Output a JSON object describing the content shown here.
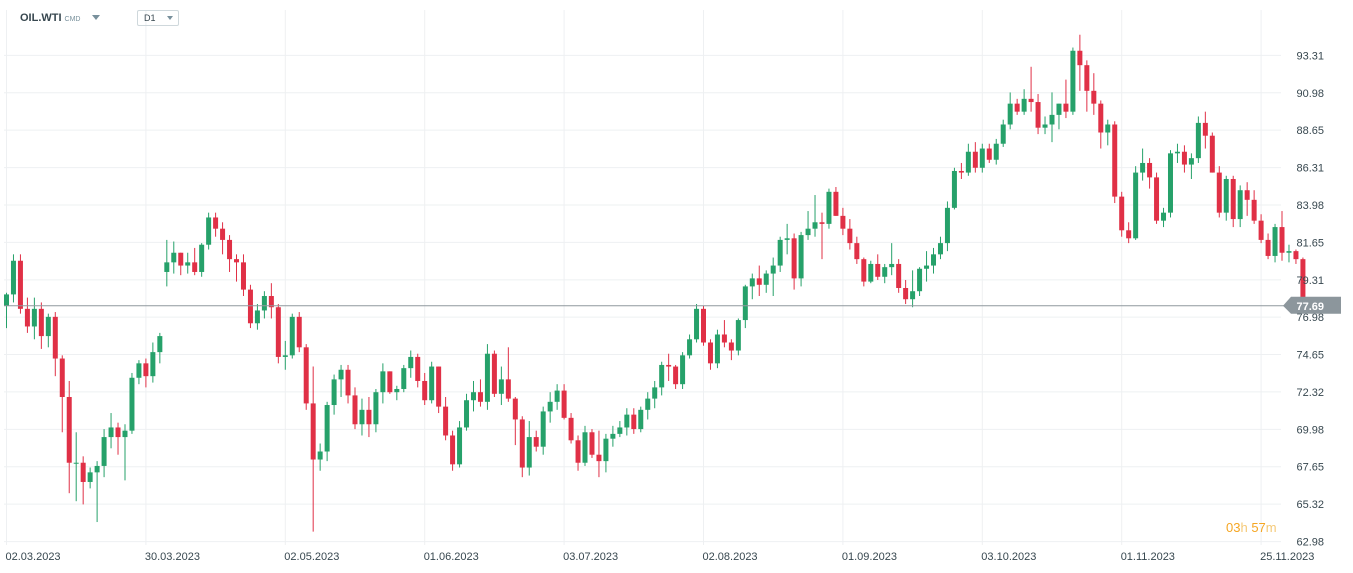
{
  "header": {
    "symbol": "OIL.WTI",
    "symbol_suffix": "CMD",
    "timeframe": "D1"
  },
  "countdown": {
    "hours": "03",
    "hours_unit": "h",
    "minutes": "57",
    "minutes_unit": "m"
  },
  "colors": {
    "up": "#26a16a",
    "down": "#e03046",
    "grid": "#eef0f2",
    "price_line": "#8f989e",
    "price_tag_bg": "#8c969c",
    "axis_text": "#37474f"
  },
  "chart_data": {
    "type": "candlestick",
    "title": "",
    "xlabel": "",
    "ylabel": "",
    "ylim": [
      62.98,
      95.0
    ],
    "y_ticks": [
      "93.31",
      "90.98",
      "88.65",
      "86.31",
      "83.98",
      "81.65",
      "79.31",
      "76.98",
      "74.65",
      "72.32",
      "69.98",
      "67.65",
      "65.32",
      "62.98"
    ],
    "x_labels": [
      "02.03.2023",
      "30.03.2023",
      "02.05.2023",
      "01.06.2023",
      "03.07.2023",
      "02.08.2023",
      "01.09.2023",
      "03.10.2023",
      "01.11.2023",
      "25.11.2023"
    ],
    "x_label_positions": [
      0,
      20,
      40,
      60,
      80,
      100,
      120,
      140,
      160,
      180
    ],
    "current_price": "77.69",
    "current_price_value": 77.69,
    "candles": [
      [
        77.7,
        78.5,
        76.3,
        78.4
      ],
      [
        78.4,
        80.9,
        77.9,
        80.5
      ],
      [
        80.5,
        80.9,
        77.2,
        77.5
      ],
      [
        77.5,
        78.2,
        76.0,
        76.4
      ],
      [
        76.4,
        78.2,
        75.6,
        77.5
      ],
      [
        77.5,
        77.9,
        75.0,
        75.8
      ],
      [
        75.8,
        77.2,
        75.1,
        77.0
      ],
      [
        77.0,
        77.3,
        73.3,
        74.4
      ],
      [
        74.4,
        74.6,
        69.8,
        72.0
      ],
      [
        72.0,
        73.0,
        66.0,
        67.9
      ],
      [
        67.9,
        69.8,
        65.5,
        67.9
      ],
      [
        67.9,
        68.3,
        65.3,
        66.7
      ],
      [
        66.7,
        67.6,
        66.3,
        67.3
      ],
      [
        67.3,
        68.0,
        64.2,
        67.7
      ],
      [
        67.7,
        70.0,
        67.0,
        69.5
      ],
      [
        69.5,
        71.0,
        68.8,
        70.1
      ],
      [
        70.1,
        70.4,
        68.4,
        69.5
      ],
      [
        69.5,
        70.3,
        66.8,
        69.9
      ],
      [
        69.9,
        73.5,
        69.7,
        73.2
      ],
      [
        73.2,
        74.3,
        72.8,
        74.1
      ],
      [
        74.1,
        74.4,
        72.6,
        73.3
      ],
      [
        73.3,
        75.4,
        72.9,
        74.8
      ],
      [
        74.8,
        76.0,
        74.1,
        75.8
      ],
      [
        79.8,
        81.8,
        78.9,
        80.4
      ],
      [
        80.4,
        81.7,
        79.7,
        81.0
      ],
      [
        81.0,
        81.0,
        79.6,
        80.2
      ],
      [
        80.2,
        81.0,
        79.7,
        80.4
      ],
      [
        80.4,
        81.3,
        79.6,
        79.8
      ],
      [
        79.8,
        81.6,
        79.5,
        81.5
      ],
      [
        81.5,
        83.5,
        81.2,
        83.2
      ],
      [
        83.2,
        83.5,
        82.0,
        82.5
      ],
      [
        82.5,
        82.9,
        80.9,
        81.8
      ],
      [
        81.8,
        82.1,
        79.8,
        80.6
      ],
      [
        80.6,
        80.9,
        79.2,
        80.4
      ],
      [
        80.4,
        80.9,
        78.3,
        78.7
      ],
      [
        78.7,
        79.0,
        76.3,
        76.6
      ],
      [
        76.6,
        77.8,
        76.2,
        77.4
      ],
      [
        77.4,
        78.6,
        76.9,
        78.3
      ],
      [
        78.3,
        79.1,
        76.9,
        77.6
      ],
      [
        77.6,
        77.8,
        74.1,
        74.5
      ],
      [
        74.5,
        75.5,
        73.7,
        74.6
      ],
      [
        74.6,
        77.2,
        74.4,
        77.0
      ],
      [
        77.0,
        77.3,
        74.8,
        75.1
      ],
      [
        75.1,
        75.3,
        71.2,
        71.6
      ],
      [
        71.6,
        73.9,
        63.6,
        68.1
      ],
      [
        68.1,
        69.1,
        67.4,
        68.6
      ],
      [
        68.6,
        71.7,
        68.0,
        71.5
      ],
      [
        71.5,
        73.4,
        70.9,
        73.1
      ],
      [
        73.1,
        74.0,
        72.0,
        73.7
      ],
      [
        73.7,
        74.0,
        71.6,
        72.1
      ],
      [
        72.1,
        72.6,
        70.0,
        70.3
      ],
      [
        70.3,
        71.9,
        69.6,
        71.2
      ],
      [
        71.2,
        72.0,
        69.5,
        70.3
      ],
      [
        70.3,
        72.5,
        69.8,
        72.3
      ],
      [
        72.3,
        74.1,
        71.6,
        73.6
      ],
      [
        73.6,
        73.6,
        72.2,
        72.3
      ],
      [
        72.3,
        72.7,
        71.8,
        72.5
      ],
      [
        72.5,
        74.0,
        72.3,
        73.8
      ],
      [
        73.8,
        74.9,
        73.2,
        74.5
      ],
      [
        74.5,
        74.7,
        72.6,
        73.0
      ],
      [
        73.0,
        73.5,
        71.5,
        71.8
      ],
      [
        71.8,
        74.2,
        71.6,
        73.9
      ],
      [
        73.9,
        73.9,
        71.0,
        71.4
      ],
      [
        71.4,
        72.0,
        69.3,
        69.6
      ],
      [
        69.6,
        69.9,
        67.4,
        67.8
      ],
      [
        67.8,
        70.5,
        67.6,
        70.1
      ],
      [
        70.1,
        72.2,
        69.9,
        71.8
      ],
      [
        71.8,
        73.0,
        71.1,
        72.3
      ],
      [
        72.3,
        73.1,
        71.4,
        71.7
      ],
      [
        71.7,
        75.3,
        71.2,
        74.7
      ],
      [
        74.7,
        74.9,
        72.0,
        72.2
      ],
      [
        72.2,
        73.9,
        71.5,
        73.1
      ],
      [
        73.1,
        75.1,
        71.7,
        71.9
      ],
      [
        71.9,
        72.0,
        69.0,
        70.6
      ],
      [
        70.6,
        70.8,
        67.0,
        67.6
      ],
      [
        67.6,
        70.5,
        67.1,
        69.5
      ],
      [
        69.5,
        69.9,
        68.6,
        68.9
      ],
      [
        68.9,
        71.4,
        68.4,
        71.1
      ],
      [
        71.1,
        72.3,
        70.4,
        71.7
      ],
      [
        71.7,
        72.8,
        71.2,
        72.4
      ],
      [
        72.4,
        72.8,
        70.6,
        70.7
      ],
      [
        70.7,
        71.0,
        69.1,
        69.3
      ],
      [
        69.3,
        69.6,
        67.4,
        67.9
      ],
      [
        67.9,
        70.2,
        67.7,
        69.8
      ],
      [
        69.8,
        70.0,
        68.2,
        68.4
      ],
      [
        68.4,
        69.9,
        67.0,
        68.0
      ],
      [
        68.0,
        69.7,
        67.3,
        69.4
      ],
      [
        69.4,
        70.2,
        68.9,
        69.7
      ],
      [
        69.7,
        70.5,
        69.5,
        70.1
      ],
      [
        70.1,
        71.3,
        69.6,
        70.9
      ],
      [
        70.9,
        71.3,
        69.7,
        70.0
      ],
      [
        70.0,
        71.4,
        69.8,
        71.2
      ],
      [
        71.2,
        72.3,
        70.6,
        71.9
      ],
      [
        71.9,
        73.0,
        71.3,
        72.6
      ],
      [
        72.6,
        74.2,
        72.1,
        74.0
      ],
      [
        74.0,
        74.7,
        73.0,
        73.9
      ],
      [
        73.9,
        74.0,
        72.5,
        72.8
      ],
      [
        72.8,
        74.8,
        72.5,
        74.6
      ],
      [
        74.6,
        75.9,
        74.4,
        75.6
      ],
      [
        75.6,
        77.8,
        75.4,
        77.5
      ],
      [
        77.5,
        77.7,
        75.2,
        75.4
      ],
      [
        75.4,
        75.6,
        73.7,
        74.1
      ],
      [
        74.1,
        76.2,
        73.8,
        75.9
      ],
      [
        75.9,
        76.8,
        75.1,
        75.4
      ],
      [
        75.4,
        75.6,
        74.3,
        74.9
      ],
      [
        74.9,
        76.9,
        74.6,
        76.8
      ],
      [
        76.8,
        79.0,
        76.3,
        78.9
      ],
      [
        78.9,
        79.7,
        78.1,
        79.4
      ],
      [
        79.4,
        80.2,
        78.3,
        79.0
      ],
      [
        79.0,
        79.9,
        78.5,
        79.7
      ],
      [
        79.7,
        80.7,
        78.3,
        80.2
      ],
      [
        80.2,
        82.0,
        79.8,
        81.8
      ],
      [
        81.8,
        82.8,
        80.9,
        81.9
      ],
      [
        81.9,
        82.2,
        78.7,
        79.4
      ],
      [
        79.4,
        82.3,
        78.9,
        82.1
      ],
      [
        82.1,
        83.6,
        81.8,
        82.5
      ],
      [
        82.5,
        84.6,
        82.0,
        82.9
      ],
      [
        82.9,
        83.5,
        80.6,
        82.8
      ],
      [
        82.8,
        85.0,
        82.5,
        84.8
      ],
      [
        84.8,
        85.1,
        83.3,
        83.3
      ],
      [
        83.3,
        83.8,
        82.1,
        82.5
      ],
      [
        82.5,
        83.1,
        81.2,
        81.6
      ],
      [
        81.6,
        82.0,
        80.3,
        80.6
      ],
      [
        80.6,
        80.7,
        78.9,
        79.2
      ],
      [
        79.2,
        80.5,
        79.1,
        80.3
      ],
      [
        80.3,
        80.9,
        79.3,
        79.5
      ],
      [
        79.5,
        80.3,
        79.1,
        80.1
      ],
      [
        80.1,
        81.6,
        79.6,
        80.3
      ],
      [
        80.3,
        80.6,
        78.5,
        78.8
      ],
      [
        78.8,
        79.3,
        77.8,
        78.1
      ],
      [
        78.1,
        79.9,
        77.6,
        78.6
      ],
      [
        78.6,
        80.1,
        78.3,
        80.0
      ],
      [
        80.0,
        81.1,
        79.2,
        80.2
      ],
      [
        80.2,
        81.3,
        79.7,
        80.9
      ],
      [
        80.9,
        82.0,
        80.6,
        81.6
      ],
      [
        81.6,
        84.2,
        81.1,
        83.8
      ],
      [
        83.8,
        86.3,
        83.7,
        86.1
      ],
      [
        86.1,
        86.6,
        85.6,
        86.0
      ],
      [
        86.0,
        87.8,
        85.8,
        87.3
      ],
      [
        87.3,
        87.9,
        86.0,
        86.3
      ],
      [
        86.3,
        87.8,
        86.0,
        87.5
      ],
      [
        87.5,
        87.8,
        86.6,
        86.8
      ],
      [
        86.8,
        88.1,
        86.5,
        87.8
      ],
      [
        87.8,
        89.3,
        87.6,
        89.0
      ],
      [
        89.0,
        91.0,
        88.7,
        90.3
      ],
      [
        90.3,
        90.6,
        89.6,
        89.8
      ],
      [
        89.8,
        91.2,
        89.6,
        90.6
      ],
      [
        90.6,
        92.6,
        89.8,
        90.4
      ],
      [
        90.4,
        90.9,
        88.4,
        88.8
      ],
      [
        88.8,
        89.5,
        88.4,
        89.0
      ],
      [
        89.0,
        91.0,
        87.9,
        89.6
      ],
      [
        89.6,
        90.3,
        88.7,
        90.3
      ],
      [
        90.3,
        91.8,
        89.4,
        89.8
      ],
      [
        89.8,
        93.8,
        89.6,
        93.6
      ],
      [
        93.6,
        94.6,
        91.1,
        92.7
      ],
      [
        92.7,
        93.0,
        89.8,
        91.1
      ],
      [
        91.1,
        92.2,
        89.6,
        90.3
      ],
      [
        90.3,
        90.5,
        87.5,
        88.5
      ],
      [
        88.5,
        89.3,
        87.7,
        89.0
      ],
      [
        89.0,
        89.2,
        84.1,
        84.5
      ],
      [
        84.5,
        84.8,
        82.0,
        82.4
      ],
      [
        82.4,
        82.9,
        81.6,
        81.9
      ],
      [
        81.9,
        86.4,
        81.8,
        86.0
      ],
      [
        86.0,
        87.5,
        85.5,
        86.6
      ],
      [
        86.6,
        86.9,
        85.0,
        85.7
      ],
      [
        85.7,
        86.0,
        82.8,
        83.0
      ],
      [
        83.0,
        83.8,
        82.6,
        83.5
      ],
      [
        83.5,
        87.4,
        83.2,
        87.2
      ],
      [
        87.2,
        87.8,
        86.6,
        87.3
      ],
      [
        87.3,
        87.7,
        86.0,
        86.5
      ],
      [
        86.5,
        87.2,
        85.6,
        86.9
      ],
      [
        86.9,
        89.5,
        86.6,
        89.1
      ],
      [
        89.1,
        89.8,
        87.5,
        88.3
      ],
      [
        88.3,
        88.5,
        86.0,
        86.0
      ],
      [
        86.0,
        86.4,
        83.2,
        83.5
      ],
      [
        83.5,
        85.8,
        83.0,
        85.6
      ],
      [
        85.6,
        85.8,
        82.6,
        83.1
      ],
      [
        83.1,
        85.2,
        82.6,
        84.9
      ],
      [
        84.9,
        85.4,
        83.3,
        84.3
      ],
      [
        84.3,
        84.9,
        82.8,
        83.0
      ],
      [
        83.0,
        83.4,
        81.6,
        81.8
      ],
      [
        81.8,
        82.2,
        80.6,
        80.8
      ],
      [
        80.8,
        82.8,
        80.4,
        82.6
      ],
      [
        82.6,
        83.6,
        80.5,
        81.0
      ],
      [
        81.0,
        81.5,
        80.4,
        81.1
      ],
      [
        81.1,
        81.2,
        80.3,
        80.6
      ],
      [
        80.6,
        80.7,
        77.4,
        77.69
      ]
    ]
  }
}
